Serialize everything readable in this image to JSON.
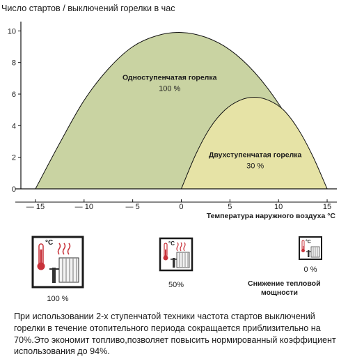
{
  "chart_data": {
    "type": "area",
    "title": "Число стартов / выключений горелки в час",
    "xlabel": "Температура наружного воздуха °C",
    "ylabel": "",
    "xlim": [
      -16.5,
      16
    ],
    "ylim": [
      0,
      10.5
    ],
    "x_ticks": [
      -15,
      -10,
      -5,
      0,
      5,
      10,
      15
    ],
    "x_tick_labels": [
      "— 15",
      "— 10",
      "— 5",
      "0",
      "5",
      "10",
      "15"
    ],
    "y_ticks": [
      0,
      2,
      4,
      6,
      8,
      10
    ],
    "y_tick_labels": [
      "0",
      "2",
      "4",
      "6",
      "8",
      "10"
    ],
    "grid": false,
    "series": [
      {
        "name": "Одноступенчатая горелка",
        "label_value": "100 %",
        "color": "#c9d3a2",
        "x": [
          -15,
          -12.5,
          -10,
          -7.5,
          -5,
          -2.5,
          0,
          2.5,
          5,
          7.5,
          10,
          12.5,
          15
        ],
        "y": [
          0,
          2.9,
          5.6,
          7.6,
          9.0,
          9.7,
          9.9,
          9.6,
          8.8,
          7.4,
          5.4,
          2.8,
          0
        ]
      },
      {
        "name": "Двухступенчатая горелка",
        "label_value": "30 %",
        "color": "#e6e3a6",
        "x": [
          0,
          1.5,
          3,
          4.5,
          6,
          7.5,
          9,
          10.5,
          12,
          13.5,
          15
        ],
        "y": [
          0,
          2.2,
          3.9,
          5.0,
          5.6,
          5.8,
          5.6,
          5.0,
          3.8,
          2.1,
          0
        ]
      }
    ]
  },
  "illustrations": [
    {
      "icon": "thermostat-radiator-icon",
      "unit": "°C",
      "value_label": "100 %"
    },
    {
      "icon": "thermostat-radiator-icon",
      "unit": "°C",
      "value_label": "50%"
    },
    {
      "icon": "thermostat-radiator-icon",
      "unit": "°C",
      "value_label": "0 %",
      "caption": "Снижение тепловой мощности"
    }
  ],
  "colors": {
    "single_stage": "#c9d3a2",
    "two_stage": "#e6e3a6",
    "icon_red": "#c8323a",
    "icon_border": "#1a1a1a"
  },
  "footnote": "При использовании 2-х ступенчатой техники частота стартов выключений горелки в течение отопительного периода сокращается приблизительно на 70%.Это экономит топливо,позволяет повысить нормированный коэффициент использования до 94%."
}
